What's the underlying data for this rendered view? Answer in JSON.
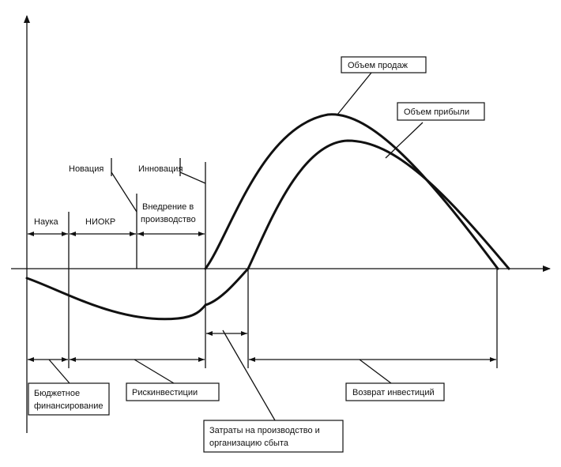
{
  "curves": {
    "sales_label": "Объем продаж",
    "profit_label": "Объем прибыли"
  },
  "stages": {
    "novation": "Новация",
    "innovation": "Инновация",
    "science": "Наука",
    "rnd": "НИОКР",
    "implementation_line1": "Внедрение в",
    "implementation_line2": "производство"
  },
  "financing": {
    "budget_line1": "Бюджетное",
    "budget_line2": "финансирование",
    "risk_investments": "Рискинвестиции",
    "return_investments": "Возврат инвестиций",
    "costs_line1": "Затраты на производство и",
    "costs_line2": "организацию сбыта"
  }
}
